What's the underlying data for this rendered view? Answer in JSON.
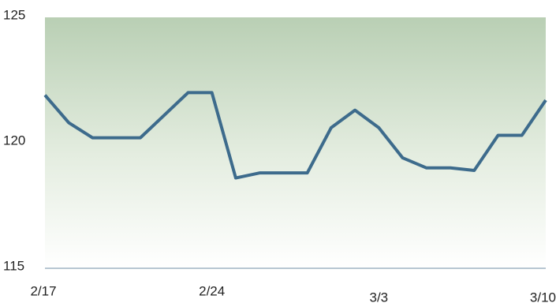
{
  "chart_data": {
    "type": "line",
    "categories": [
      "2/17",
      null,
      null,
      null,
      null,
      null,
      null,
      "2/24",
      null,
      null,
      null,
      null,
      null,
      null,
      "3/3",
      null,
      null,
      null,
      null,
      null,
      null,
      "3/10"
    ],
    "series": [
      {
        "color": "#3d6b8c",
        "values": [
          121.9,
          120.8,
          120.2,
          120.2,
          120.2,
          121.1,
          122.0,
          122.0,
          118.6,
          118.8,
          118.8,
          118.8,
          120.6,
          121.3,
          120.6,
          119.4,
          119.0,
          119.0,
          118.9,
          120.3,
          120.3,
          121.7
        ]
      }
    ],
    "ylim": [
      115,
      125
    ],
    "yticks": [
      115,
      120,
      125
    ]
  }
}
